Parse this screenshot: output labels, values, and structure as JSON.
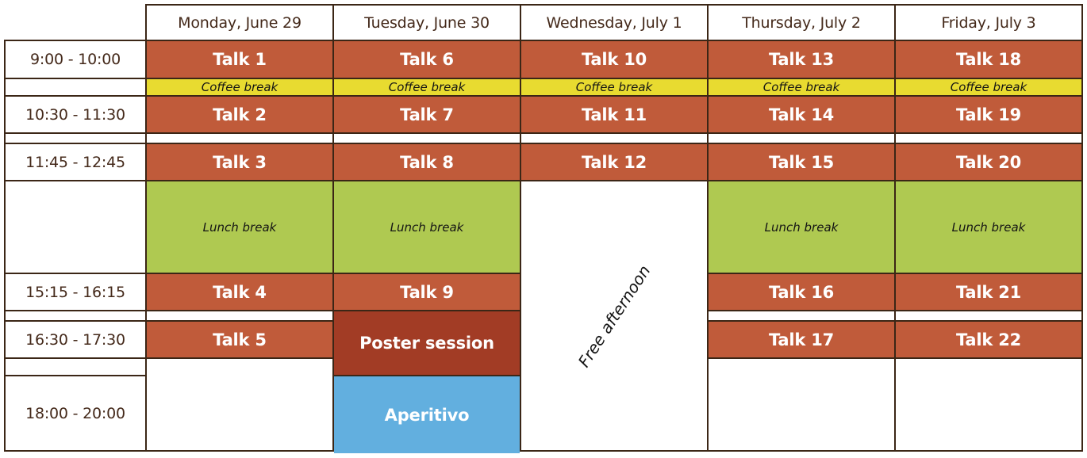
{
  "colors": {
    "border": "#3B2616",
    "heading_text": "#44291A",
    "talk_bg": "#C05B3A",
    "coffee_bg": "#E8DB30",
    "lunch_bg": "#AFC951",
    "poster_bg": "#A23C25",
    "aperitivo_bg": "#62AFDF",
    "break_text": "#141414",
    "talk_text": "#FFFFFF"
  },
  "grid": {
    "day_headers": [
      "Monday, June 29",
      "Tuesday, June 30",
      "Wednesday, July 1",
      "Thursday, July 2",
      "Friday, July 3"
    ],
    "time_slots": [
      "9:00 - 10:00",
      "10:30 - 11:30",
      "11:45 - 12:45",
      "15:15 - 16:15",
      "16:30 - 17:30",
      "18:00 - 20:00"
    ],
    "cells": [
      {
        "r": 1,
        "c": 2,
        "type": "header",
        "label": "Monday, June 29"
      },
      {
        "r": 1,
        "c": 3,
        "type": "header",
        "label": "Tuesday, June 30"
      },
      {
        "r": 1,
        "c": 4,
        "type": "header",
        "label": "Wednesday, July 1"
      },
      {
        "r": 1,
        "c": 5,
        "type": "header",
        "label": "Thursday, July 2"
      },
      {
        "r": 1,
        "c": 6,
        "type": "header",
        "label": "Friday, July 3"
      },
      {
        "r": 2,
        "c": 1,
        "type": "time",
        "label": "9:00 - 10:00"
      },
      {
        "r": 2,
        "c": 2,
        "type": "talk",
        "label": "Talk 1"
      },
      {
        "r": 2,
        "c": 3,
        "type": "talk",
        "label": "Talk 6"
      },
      {
        "r": 2,
        "c": 4,
        "type": "talk",
        "label": "Talk 10"
      },
      {
        "r": 2,
        "c": 5,
        "type": "talk",
        "label": "Talk 13"
      },
      {
        "r": 2,
        "c": 6,
        "type": "talk",
        "label": "Talk 18"
      },
      {
        "r": 3,
        "c": 1,
        "type": "empty",
        "label": ""
      },
      {
        "r": 3,
        "c": 2,
        "type": "coffee",
        "label": "Coffee break"
      },
      {
        "r": 3,
        "c": 3,
        "type": "coffee",
        "label": "Coffee break"
      },
      {
        "r": 3,
        "c": 4,
        "type": "coffee",
        "label": "Coffee break"
      },
      {
        "r": 3,
        "c": 5,
        "type": "coffee",
        "label": "Coffee break"
      },
      {
        "r": 3,
        "c": 6,
        "type": "coffee",
        "label": "Coffee break"
      },
      {
        "r": 4,
        "c": 1,
        "type": "time",
        "label": "10:30 - 11:30"
      },
      {
        "r": 4,
        "c": 2,
        "type": "talk",
        "label": "Talk 2"
      },
      {
        "r": 4,
        "c": 3,
        "type": "talk",
        "label": "Talk 7"
      },
      {
        "r": 4,
        "c": 4,
        "type": "talk",
        "label": "Talk 11"
      },
      {
        "r": 4,
        "c": 5,
        "type": "talk",
        "label": "Talk 14"
      },
      {
        "r": 4,
        "c": 6,
        "type": "talk",
        "label": "Talk 19"
      },
      {
        "r": 5,
        "c": 1,
        "type": "empty",
        "label": ""
      },
      {
        "r": 5,
        "c": 2,
        "type": "empty",
        "label": ""
      },
      {
        "r": 5,
        "c": 3,
        "type": "empty",
        "label": ""
      },
      {
        "r": 5,
        "c": 4,
        "type": "empty",
        "label": ""
      },
      {
        "r": 5,
        "c": 5,
        "type": "empty",
        "label": ""
      },
      {
        "r": 5,
        "c": 6,
        "type": "empty",
        "label": ""
      },
      {
        "r": 6,
        "c": 1,
        "type": "time",
        "label": "11:45 - 12:45"
      },
      {
        "r": 6,
        "c": 2,
        "type": "talk",
        "label": "Talk 3"
      },
      {
        "r": 6,
        "c": 3,
        "type": "talk",
        "label": "Talk 8"
      },
      {
        "r": 6,
        "c": 4,
        "type": "talk",
        "label": "Talk 12"
      },
      {
        "r": 6,
        "c": 5,
        "type": "talk",
        "label": "Talk 15"
      },
      {
        "r": 6,
        "c": 6,
        "type": "talk",
        "label": "Talk 20"
      },
      {
        "r": 7,
        "c": 1,
        "type": "empty",
        "label": ""
      },
      {
        "r": 7,
        "c": 2,
        "type": "lunch",
        "label": "Lunch break"
      },
      {
        "r": 7,
        "c": 3,
        "type": "lunch",
        "label": "Lunch break"
      },
      {
        "r": 7,
        "c": 4,
        "rs": 6,
        "type": "free",
        "label": "Free afternoon"
      },
      {
        "r": 7,
        "c": 5,
        "type": "lunch",
        "label": "Lunch break"
      },
      {
        "r": 7,
        "c": 6,
        "type": "lunch",
        "label": "Lunch break"
      },
      {
        "r": 8,
        "c": 1,
        "type": "time",
        "label": "15:15 - 16:15"
      },
      {
        "r": 8,
        "c": 2,
        "type": "talk",
        "label": "Talk 4"
      },
      {
        "r": 8,
        "c": 3,
        "type": "talk",
        "label": "Talk 9"
      },
      {
        "r": 8,
        "c": 5,
        "type": "talk",
        "label": "Talk 16"
      },
      {
        "r": 8,
        "c": 6,
        "type": "talk",
        "label": "Talk 21"
      },
      {
        "r": 9,
        "c": 1,
        "type": "empty",
        "label": ""
      },
      {
        "r": 9,
        "c": 2,
        "type": "empty",
        "label": ""
      },
      {
        "r": 9,
        "c": 3,
        "rs": 3,
        "type": "poster",
        "label": "Poster session"
      },
      {
        "r": 9,
        "c": 5,
        "type": "empty",
        "label": ""
      },
      {
        "r": 9,
        "c": 6,
        "type": "empty",
        "label": ""
      },
      {
        "r": 10,
        "c": 1,
        "type": "time",
        "label": "16:30 - 17:30"
      },
      {
        "r": 10,
        "c": 2,
        "type": "talk",
        "label": "Talk 5"
      },
      {
        "r": 10,
        "c": 5,
        "type": "talk",
        "label": "Talk 17"
      },
      {
        "r": 10,
        "c": 6,
        "type": "talk",
        "label": "Talk 22"
      },
      {
        "r": 11,
        "c": 1,
        "type": "empty",
        "label": ""
      },
      {
        "r": 11,
        "c": 2,
        "rs": 2,
        "type": "empty",
        "label": ""
      },
      {
        "r": 11,
        "c": 5,
        "rs": 2,
        "type": "empty",
        "label": ""
      },
      {
        "r": 11,
        "c": 6,
        "rs": 2,
        "type": "empty",
        "label": ""
      },
      {
        "r": 12,
        "c": 1,
        "type": "time",
        "label": "18:00 - 20:00"
      },
      {
        "r": 12,
        "c": 3,
        "type": "aperitivo",
        "label": "Aperitivo"
      }
    ]
  }
}
